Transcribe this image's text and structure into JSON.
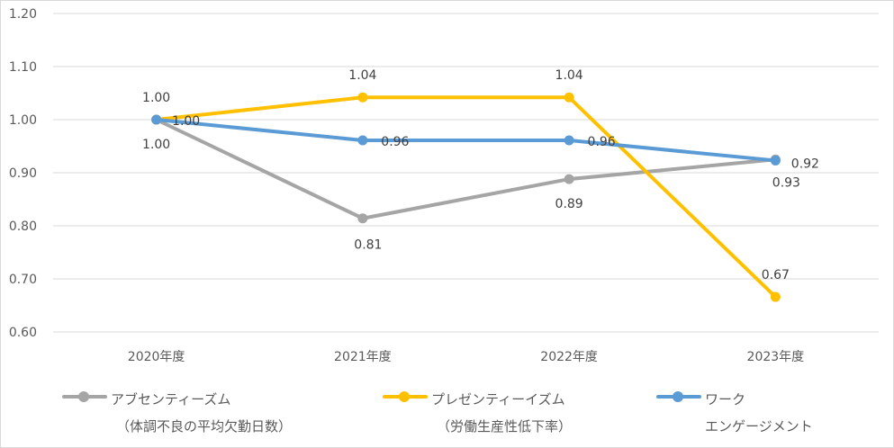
{
  "chart_data": {
    "type": "line",
    "categories": [
      "2020年度",
      "2021年度",
      "2022年度",
      "2023年度"
    ],
    "ylim": [
      0.6,
      1.2
    ],
    "yticks": [
      "0.60",
      "0.70",
      "0.80",
      "0.90",
      "1.00",
      "1.10",
      "1.20"
    ],
    "grid": true,
    "legend_position": "bottom",
    "series": [
      {
        "name": "アブセンティーズム",
        "subname": "（体調不良の平均欠勤日数）",
        "color": "#a5a5a5",
        "values": [
          1.0,
          0.814,
          0.888,
          0.925
        ],
        "labels": [
          "1.00",
          "0.81",
          "0.89",
          "0.93"
        ]
      },
      {
        "name": "プレゼンティーイズム",
        "subname": "（労働生産性低下率）",
        "color": "#ffc000",
        "values": [
          1.0,
          1.042,
          1.042,
          0.666
        ],
        "labels": [
          "1.00",
          "1.04",
          "1.04",
          "0.67"
        ]
      },
      {
        "name": "ワーク",
        "subname": "エンゲージメント",
        "color": "#5b9bd5",
        "values": [
          1.0,
          0.961,
          0.961,
          0.923
        ],
        "labels": [
          "1.00",
          "0.96",
          "0.96",
          "0.92"
        ]
      }
    ]
  }
}
